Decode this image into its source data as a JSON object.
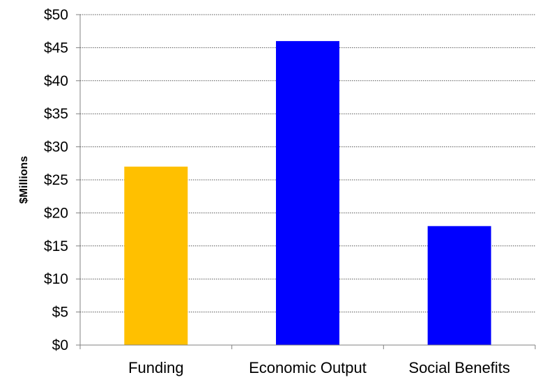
{
  "chart_data": {
    "type": "bar",
    "categories": [
      "Funding",
      "Economic Output",
      "Social Benefits"
    ],
    "values": [
      27,
      46,
      18
    ],
    "colors": [
      "#FFC000",
      "#0000FF",
      "#0000FF"
    ],
    "ylabel": "$Millions",
    "xlabel": "",
    "ylim": [
      0,
      50
    ],
    "yticks": [
      0,
      5,
      10,
      15,
      20,
      25,
      30,
      35,
      40,
      45,
      50
    ],
    "ytick_labels": [
      "$0",
      "$5",
      "$10",
      "$15",
      "$20",
      "$25",
      "$30",
      "$35",
      "$40",
      "$45",
      "$50"
    ],
    "grid": true,
    "legend": "none"
  }
}
